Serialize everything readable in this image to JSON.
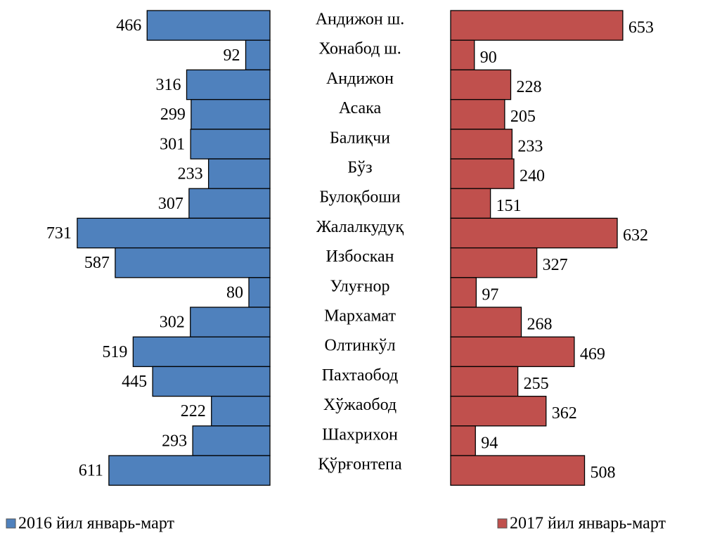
{
  "chart_data": {
    "type": "bar",
    "orientation": "butterfly",
    "categories": [
      "Андижон ш.",
      "Хонабод ш.",
      "Андижон",
      "Асака",
      "Балиқчи",
      "Бўз",
      "Булоқбоши",
      "Жалалкудуқ",
      "Избоскан",
      "Улуғнор",
      "Мархамат",
      "Олтинкўл",
      "Пахтаобод",
      "Хўжаобод",
      "Шахрихон",
      "Қўрғонтепа"
    ],
    "series": [
      {
        "name": "2016 йил январь-март",
        "color": "#4f81bd",
        "values": [
          466,
          92,
          316,
          299,
          301,
          233,
          307,
          731,
          587,
          80,
          302,
          519,
          445,
          222,
          293,
          611
        ]
      },
      {
        "name": "2017 йил январь-март",
        "color": "#c0504d",
        "values": [
          653,
          90,
          228,
          205,
          233,
          240,
          151,
          632,
          327,
          97,
          268,
          469,
          255,
          362,
          94,
          508
        ]
      }
    ]
  }
}
